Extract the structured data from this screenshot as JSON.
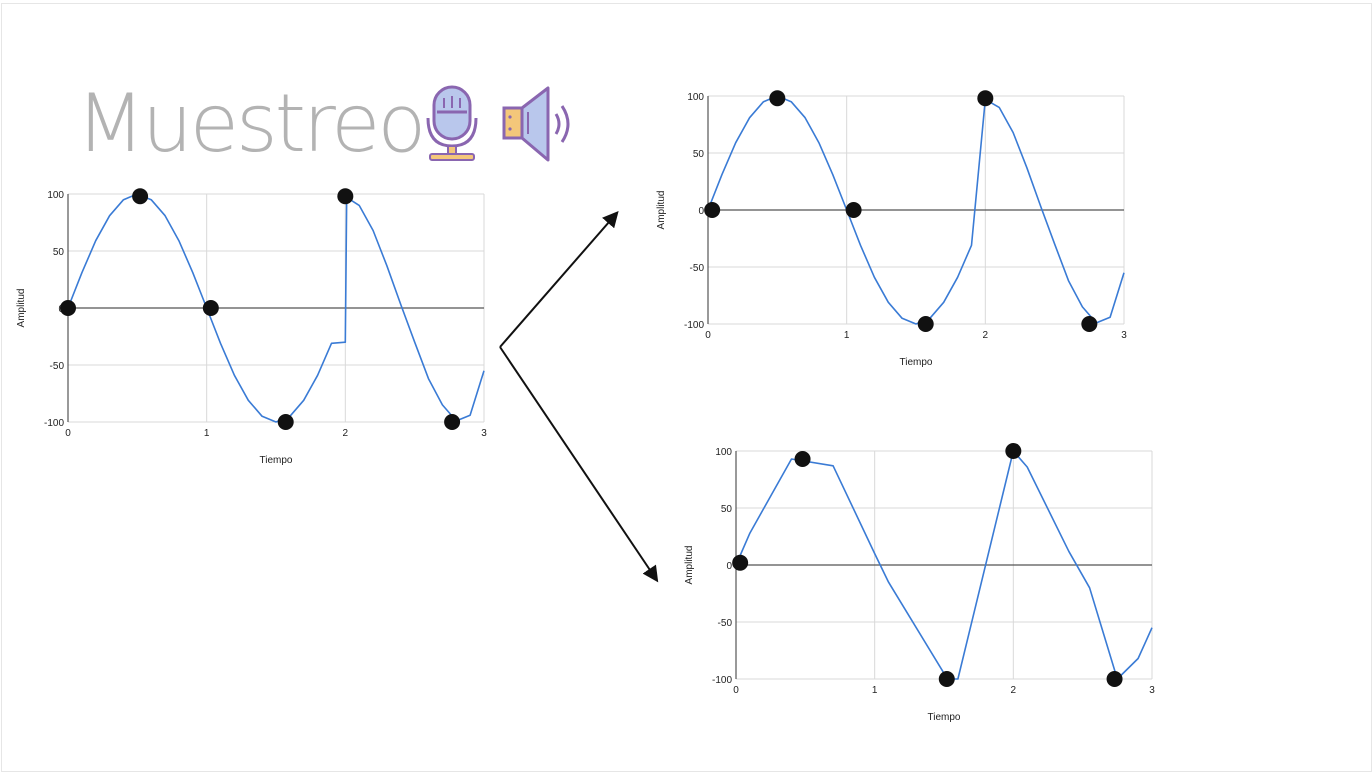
{
  "slide": {
    "title": "Muestreo",
    "icons": [
      "microphone-icon",
      "speaker-icon"
    ],
    "accent_color": "#3a7bd5",
    "sample_color": "#111111"
  },
  "chart_data": [
    {
      "type": "line",
      "xlabel": "Tiempo",
      "ylabel": "Amplitud",
      "xlim": [
        0,
        3
      ],
      "ylim": [
        -100,
        100
      ],
      "x_ticks": [
        "0",
        "1",
        "2",
        "3"
      ],
      "y_ticks": [
        "100",
        "50",
        "0",
        "-50",
        "-100"
      ],
      "grid": true,
      "series": [
        {
          "x": [
            0,
            0.1,
            0.2,
            0.3,
            0.4,
            0.5,
            0.6,
            0.7,
            0.8,
            0.9,
            1.0,
            1.1,
            1.2,
            1.3,
            1.4,
            1.5,
            1.6,
            1.7,
            1.8,
            1.9,
            2.0,
            2.01,
            2.1,
            2.2,
            2.3,
            2.4,
            2.5,
            2.6,
            2.7,
            2.8,
            2.9,
            3.0
          ],
          "y": [
            0,
            31,
            59,
            81,
            95,
            100,
            95,
            81,
            59,
            31,
            0,
            -31,
            -59,
            -81,
            -95,
            -100,
            -95,
            -81,
            -59,
            -31,
            -30,
            97,
            90,
            68,
            37,
            3,
            -30,
            -62,
            -85,
            -99,
            -94,
            -55
          ]
        }
      ],
      "samples": {
        "x": [
          0,
          0.52,
          1.03,
          1.57,
          2.0,
          2.77
        ],
        "y": [
          0,
          98,
          0,
          -100,
          98,
          -100
        ]
      }
    },
    {
      "type": "line",
      "xlabel": "Tiempo",
      "ylabel": "Amplitud",
      "xlim": [
        0,
        3
      ],
      "ylim": [
        -100,
        100
      ],
      "x_ticks": [
        "0",
        "1",
        "2",
        "3"
      ],
      "y_ticks": [
        "100",
        "50",
        "0",
        "-50",
        "-100"
      ],
      "grid": true,
      "series": [
        {
          "x": [
            0,
            0.1,
            0.2,
            0.3,
            0.4,
            0.5,
            0.6,
            0.7,
            0.8,
            0.9,
            1.0,
            1.1,
            1.2,
            1.3,
            1.4,
            1.5,
            1.6,
            1.7,
            1.8,
            1.9,
            2.0,
            2.1,
            2.2,
            2.3,
            2.4,
            2.5,
            2.6,
            2.7,
            2.8,
            2.9,
            3.0
          ],
          "y": [
            0,
            31,
            59,
            81,
            95,
            100,
            95,
            81,
            59,
            31,
            0,
            -31,
            -59,
            -81,
            -95,
            -100,
            -95,
            -81,
            -59,
            -31,
            97,
            90,
            68,
            37,
            3,
            -30,
            -62,
            -85,
            -99,
            -94,
            -55
          ]
        }
      ],
      "samples": {
        "x": [
          0.03,
          0.5,
          1.05,
          1.57,
          2.0,
          2.75
        ],
        "y": [
          0,
          98,
          0,
          -100,
          98,
          -100
        ]
      }
    },
    {
      "type": "line",
      "xlabel": "Tiempo",
      "ylabel": "Amplitud",
      "xlim": [
        0,
        3
      ],
      "ylim": [
        -100,
        100
      ],
      "x_ticks": [
        "0",
        "1",
        "2",
        "3"
      ],
      "y_ticks": [
        "100",
        "50",
        "0",
        "-50",
        "-100"
      ],
      "grid": true,
      "series": [
        {
          "x": [
            0,
            0.1,
            0.4,
            0.7,
            1.0,
            1.1,
            1.5,
            1.55,
            1.6,
            2.0,
            2.1,
            2.4,
            2.55,
            2.75,
            2.9,
            3.0
          ],
          "y": [
            0,
            28,
            93,
            87,
            10,
            -15,
            -95,
            -100,
            -100,
            100,
            86,
            12,
            -20,
            -100,
            -82,
            -55
          ]
        }
      ],
      "samples": {
        "x": [
          0.03,
          0.48,
          1.52,
          2.0,
          2.73
        ],
        "y": [
          2,
          93,
          -100,
          100,
          -100
        ]
      }
    }
  ]
}
